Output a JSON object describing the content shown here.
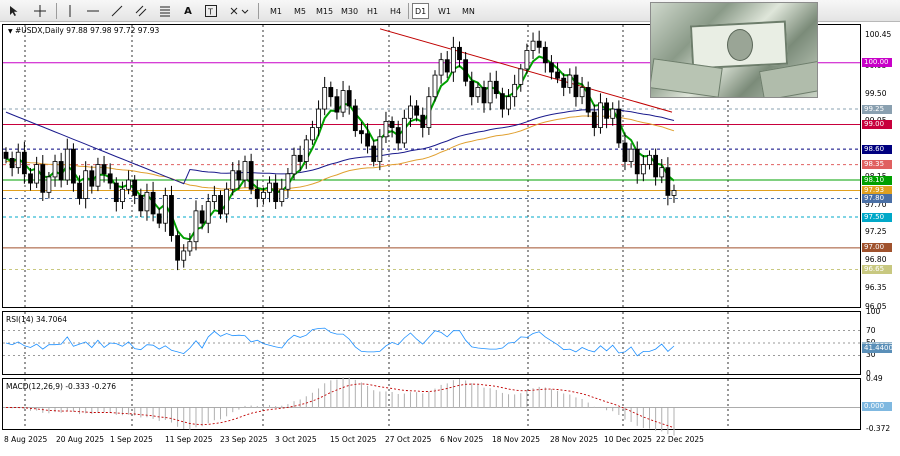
{
  "toolbar": {
    "timeframes": [
      "M1",
      "M5",
      "M15",
      "M30",
      "H1",
      "H4",
      "D1",
      "W1",
      "MN"
    ],
    "icons": [
      "crosshair-icon",
      "cursor-icon",
      "vertical-line-icon",
      "horizontal-line-icon",
      "trendline-icon",
      "channel-icon",
      "fibonacci-icon",
      "text-icon",
      "text-label-icon",
      "shapes-icon"
    ]
  },
  "main": {
    "title": "#USDX,Daily  97.88 97.98 97.72 97.93",
    "price_axis": [
      "100.45",
      "99.95",
      "99.50",
      "99.05",
      "98.15",
      "97.70",
      "97.25",
      "96.80",
      "96.35",
      "96.05"
    ],
    "price_tags": [
      {
        "value": "100.00",
        "color": "#c800c8"
      },
      {
        "value": "99.25",
        "color": "#8aa0b0"
      },
      {
        "value": "99.00",
        "color": "#c8003c"
      },
      {
        "value": "98.60",
        "color": "#00007f"
      },
      {
        "value": "98.35",
        "color": "#e06060"
      },
      {
        "value": "98.10",
        "color": "#00a000"
      },
      {
        "value": "97.93",
        "color": "#e0a020"
      },
      {
        "value": "97.80",
        "color": "#4a6fa5"
      },
      {
        "value": "97.50",
        "color": "#00a8c8"
      },
      {
        "value": "97.00",
        "color": "#a0522d"
      },
      {
        "value": "96.65",
        "color": "#c8c880"
      }
    ]
  },
  "rsi": {
    "title": "RSI(14) 34.7064",
    "axis": [
      "100",
      "70",
      "50",
      "30",
      "0"
    ],
    "tags": [
      "45.0000",
      "41.4400"
    ]
  },
  "macd": {
    "title": "MACD(12,26,9) -0.333 -0.276",
    "axis": [
      "0.49",
      "0.000",
      "-0.372"
    ]
  },
  "date_axis": [
    "8 Aug 2025",
    "20 Aug 2025",
    "1 Sep 2025",
    "11 Sep 2025",
    "23 Sep 2025",
    "3 Oct 2025",
    "15 Oct 2025",
    "27 Oct 2025",
    "6 Nov 2025",
    "18 Nov 2025",
    "28 Nov 2025",
    "10 Dec 2025",
    "22 Dec 2025"
  ],
  "colors": {
    "ema_fast": "#00a000",
    "ema_mid": "#e0a030",
    "sma_slow": "#1a1a8c",
    "trend": "#c00000"
  }
}
